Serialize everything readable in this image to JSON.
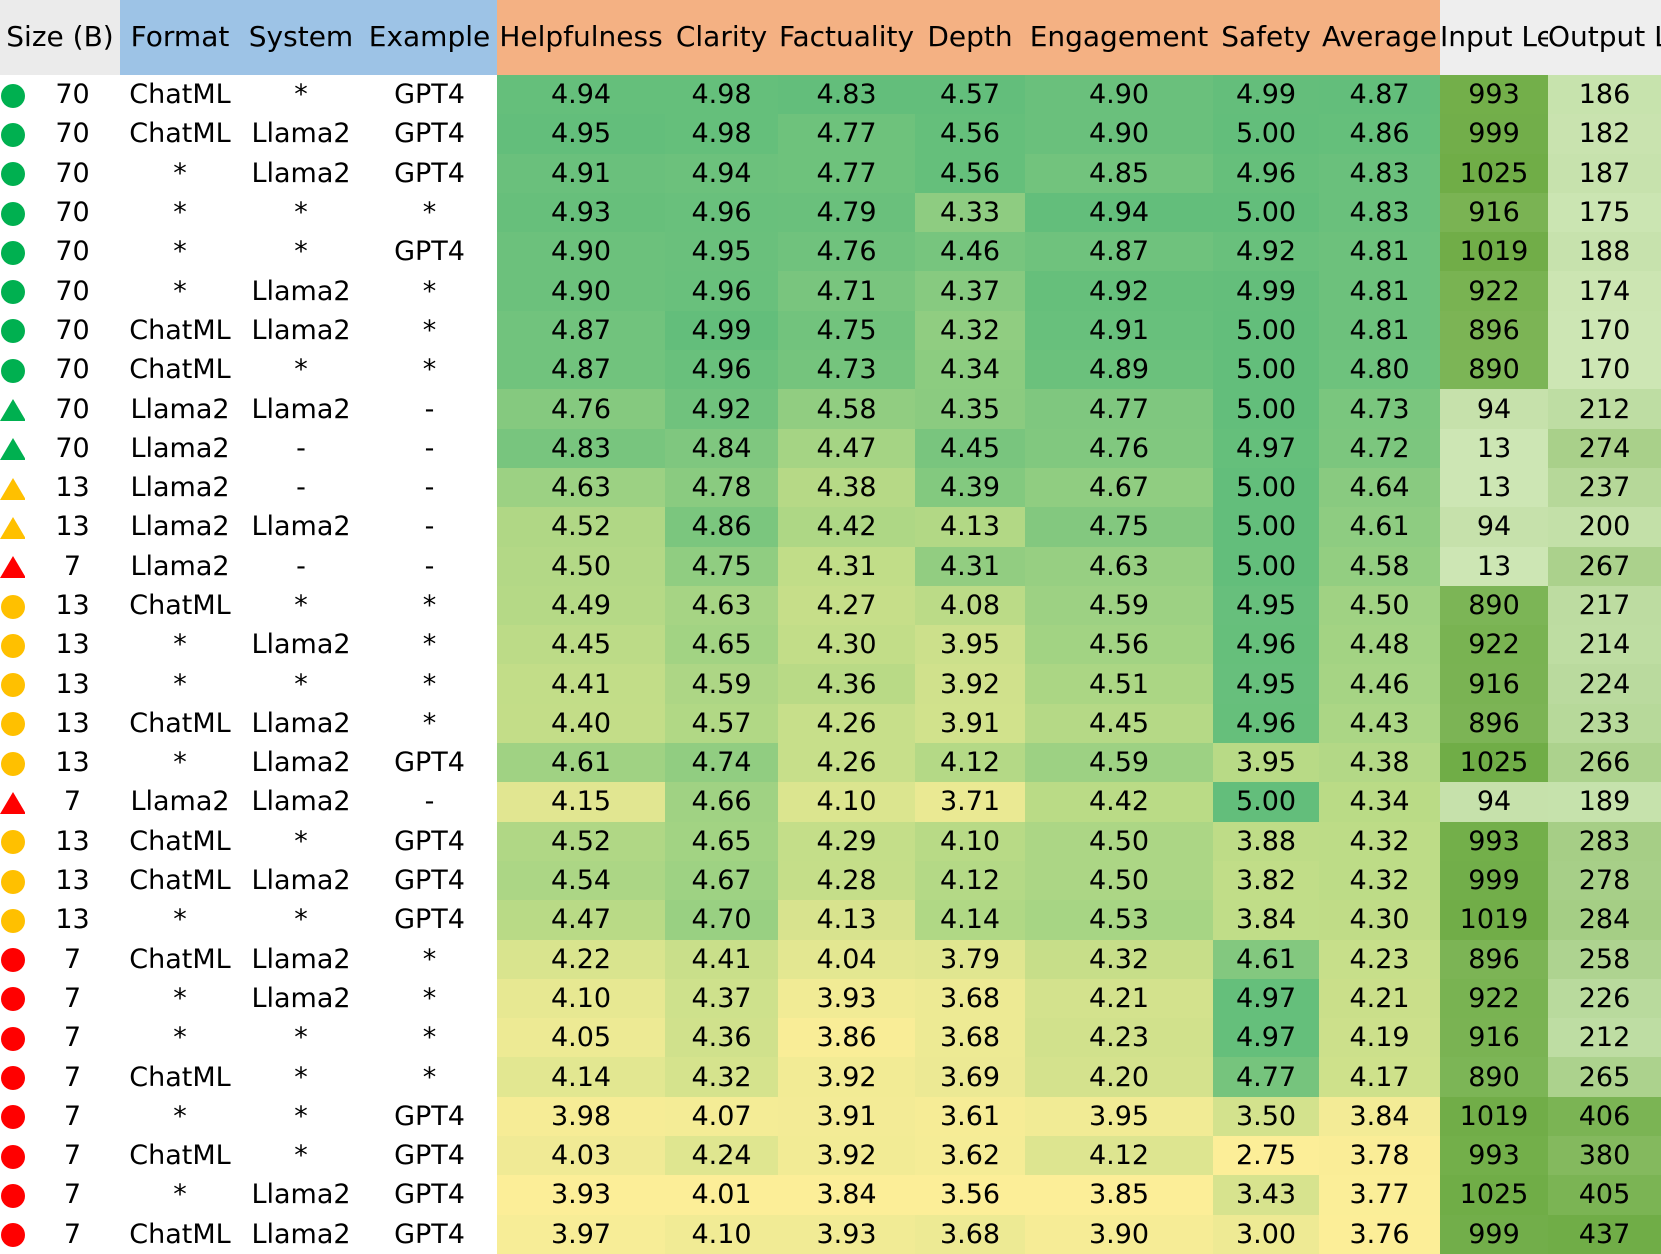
{
  "colors": {
    "green": "#00b050",
    "yellow": "#ffc000",
    "red": "#ff0000"
  },
  "headers": [
    {
      "key": "size",
      "label": "Size (B)"
    },
    {
      "key": "format",
      "label": "Format"
    },
    {
      "key": "system",
      "label": "System"
    },
    {
      "key": "example",
      "label": "Example"
    },
    {
      "key": "helpfulness",
      "label": "Helpfulness"
    },
    {
      "key": "clarity",
      "label": "Clarity"
    },
    {
      "key": "factuality",
      "label": "Factuality"
    },
    {
      "key": "depth",
      "label": "Depth"
    },
    {
      "key": "engagement",
      "label": "Engagement"
    },
    {
      "key": "safety",
      "label": "Safety"
    },
    {
      "key": "average",
      "label": "Average"
    },
    {
      "key": "input_length",
      "label": "Input Length"
    },
    {
      "key": "output_length",
      "label": "Output Length"
    }
  ],
  "rows": [
    {
      "marker": "circle",
      "color": "green",
      "size": "70",
      "format": "ChatML",
      "system": "*",
      "example": "GPT4",
      "helpfulness": "4.94",
      "clarity": "4.98",
      "factuality": "4.83",
      "depth": "4.57",
      "engagement": "4.90",
      "safety": "4.99",
      "average": "4.87",
      "input_length": "993",
      "output_length": "186"
    },
    {
      "marker": "circle",
      "color": "green",
      "size": "70",
      "format": "ChatML",
      "system": "Llama2",
      "example": "GPT4",
      "helpfulness": "4.95",
      "clarity": "4.98",
      "factuality": "4.77",
      "depth": "4.56",
      "engagement": "4.90",
      "safety": "5.00",
      "average": "4.86",
      "input_length": "999",
      "output_length": "182"
    },
    {
      "marker": "circle",
      "color": "green",
      "size": "70",
      "format": "*",
      "system": "Llama2",
      "example": "GPT4",
      "helpfulness": "4.91",
      "clarity": "4.94",
      "factuality": "4.77",
      "depth": "4.56",
      "engagement": "4.85",
      "safety": "4.96",
      "average": "4.83",
      "input_length": "1025",
      "output_length": "187"
    },
    {
      "marker": "circle",
      "color": "green",
      "size": "70",
      "format": "*",
      "system": "*",
      "example": "*",
      "helpfulness": "4.93",
      "clarity": "4.96",
      "factuality": "4.79",
      "depth": "4.33",
      "engagement": "4.94",
      "safety": "5.00",
      "average": "4.83",
      "input_length": "916",
      "output_length": "175"
    },
    {
      "marker": "circle",
      "color": "green",
      "size": "70",
      "format": "*",
      "system": "*",
      "example": "GPT4",
      "helpfulness": "4.90",
      "clarity": "4.95",
      "factuality": "4.76",
      "depth": "4.46",
      "engagement": "4.87",
      "safety": "4.92",
      "average": "4.81",
      "input_length": "1019",
      "output_length": "188"
    },
    {
      "marker": "circle",
      "color": "green",
      "size": "70",
      "format": "*",
      "system": "Llama2",
      "example": "*",
      "helpfulness": "4.90",
      "clarity": "4.96",
      "factuality": "4.71",
      "depth": "4.37",
      "engagement": "4.92",
      "safety": "4.99",
      "average": "4.81",
      "input_length": "922",
      "output_length": "174"
    },
    {
      "marker": "circle",
      "color": "green",
      "size": "70",
      "format": "ChatML",
      "system": "Llama2",
      "example": "*",
      "helpfulness": "4.87",
      "clarity": "4.99",
      "factuality": "4.75",
      "depth": "4.32",
      "engagement": "4.91",
      "safety": "5.00",
      "average": "4.81",
      "input_length": "896",
      "output_length": "170"
    },
    {
      "marker": "circle",
      "color": "green",
      "size": "70",
      "format": "ChatML",
      "system": "*",
      "example": "*",
      "helpfulness": "4.87",
      "clarity": "4.96",
      "factuality": "4.73",
      "depth": "4.34",
      "engagement": "4.89",
      "safety": "5.00",
      "average": "4.80",
      "input_length": "890",
      "output_length": "170"
    },
    {
      "marker": "triangle",
      "color": "green",
      "size": "70",
      "format": "Llama2",
      "system": "Llama2",
      "example": "-",
      "helpfulness": "4.76",
      "clarity": "4.92",
      "factuality": "4.58",
      "depth": "4.35",
      "engagement": "4.77",
      "safety": "5.00",
      "average": "4.73",
      "input_length": "94",
      "output_length": "212"
    },
    {
      "marker": "triangle",
      "color": "green",
      "size": "70",
      "format": "Llama2",
      "system": "-",
      "example": "-",
      "helpfulness": "4.83",
      "clarity": "4.84",
      "factuality": "4.47",
      "depth": "4.45",
      "engagement": "4.76",
      "safety": "4.97",
      "average": "4.72",
      "input_length": "13",
      "output_length": "274"
    },
    {
      "marker": "triangle",
      "color": "yellow",
      "size": "13",
      "format": "Llama2",
      "system": "-",
      "example": "-",
      "helpfulness": "4.63",
      "clarity": "4.78",
      "factuality": "4.38",
      "depth": "4.39",
      "engagement": "4.67",
      "safety": "5.00",
      "average": "4.64",
      "input_length": "13",
      "output_length": "237"
    },
    {
      "marker": "triangle",
      "color": "yellow",
      "size": "13",
      "format": "Llama2",
      "system": "Llama2",
      "example": "-",
      "helpfulness": "4.52",
      "clarity": "4.86",
      "factuality": "4.42",
      "depth": "4.13",
      "engagement": "4.75",
      "safety": "5.00",
      "average": "4.61",
      "input_length": "94",
      "output_length": "200"
    },
    {
      "marker": "triangle",
      "color": "red",
      "size": "7",
      "format": "Llama2",
      "system": "-",
      "example": "-",
      "helpfulness": "4.50",
      "clarity": "4.75",
      "factuality": "4.31",
      "depth": "4.31",
      "engagement": "4.63",
      "safety": "5.00",
      "average": "4.58",
      "input_length": "13",
      "output_length": "267"
    },
    {
      "marker": "circle",
      "color": "yellow",
      "size": "13",
      "format": "ChatML",
      "system": "*",
      "example": "*",
      "helpfulness": "4.49",
      "clarity": "4.63",
      "factuality": "4.27",
      "depth": "4.08",
      "engagement": "4.59",
      "safety": "4.95",
      "average": "4.50",
      "input_length": "890",
      "output_length": "217"
    },
    {
      "marker": "circle",
      "color": "yellow",
      "size": "13",
      "format": "*",
      "system": "Llama2",
      "example": "*",
      "helpfulness": "4.45",
      "clarity": "4.65",
      "factuality": "4.30",
      "depth": "3.95",
      "engagement": "4.56",
      "safety": "4.96",
      "average": "4.48",
      "input_length": "922",
      "output_length": "214"
    },
    {
      "marker": "circle",
      "color": "yellow",
      "size": "13",
      "format": "*",
      "system": "*",
      "example": "*",
      "helpfulness": "4.41",
      "clarity": "4.59",
      "factuality": "4.36",
      "depth": "3.92",
      "engagement": "4.51",
      "safety": "4.95",
      "average": "4.46",
      "input_length": "916",
      "output_length": "224"
    },
    {
      "marker": "circle",
      "color": "yellow",
      "size": "13",
      "format": "ChatML",
      "system": "Llama2",
      "example": "*",
      "helpfulness": "4.40",
      "clarity": "4.57",
      "factuality": "4.26",
      "depth": "3.91",
      "engagement": "4.45",
      "safety": "4.96",
      "average": "4.43",
      "input_length": "896",
      "output_length": "233"
    },
    {
      "marker": "circle",
      "color": "yellow",
      "size": "13",
      "format": "*",
      "system": "Llama2",
      "example": "GPT4",
      "helpfulness": "4.61",
      "clarity": "4.74",
      "factuality": "4.26",
      "depth": "4.12",
      "engagement": "4.59",
      "safety": "3.95",
      "average": "4.38",
      "input_length": "1025",
      "output_length": "266"
    },
    {
      "marker": "triangle",
      "color": "red",
      "size": "7",
      "format": "Llama2",
      "system": "Llama2",
      "example": "-",
      "helpfulness": "4.15",
      "clarity": "4.66",
      "factuality": "4.10",
      "depth": "3.71",
      "engagement": "4.42",
      "safety": "5.00",
      "average": "4.34",
      "input_length": "94",
      "output_length": "189"
    },
    {
      "marker": "circle",
      "color": "yellow",
      "size": "13",
      "format": "ChatML",
      "system": "*",
      "example": "GPT4",
      "helpfulness": "4.52",
      "clarity": "4.65",
      "factuality": "4.29",
      "depth": "4.10",
      "engagement": "4.50",
      "safety": "3.88",
      "average": "4.32",
      "input_length": "993",
      "output_length": "283"
    },
    {
      "marker": "circle",
      "color": "yellow",
      "size": "13",
      "format": "ChatML",
      "system": "Llama2",
      "example": "GPT4",
      "helpfulness": "4.54",
      "clarity": "4.67",
      "factuality": "4.28",
      "depth": "4.12",
      "engagement": "4.50",
      "safety": "3.82",
      "average": "4.32",
      "input_length": "999",
      "output_length": "278"
    },
    {
      "marker": "circle",
      "color": "yellow",
      "size": "13",
      "format": "*",
      "system": "*",
      "example": "GPT4",
      "helpfulness": "4.47",
      "clarity": "4.70",
      "factuality": "4.13",
      "depth": "4.14",
      "engagement": "4.53",
      "safety": "3.84",
      "average": "4.30",
      "input_length": "1019",
      "output_length": "284"
    },
    {
      "marker": "circle",
      "color": "red",
      "size": "7",
      "format": "ChatML",
      "system": "Llama2",
      "example": "*",
      "helpfulness": "4.22",
      "clarity": "4.41",
      "factuality": "4.04",
      "depth": "3.79",
      "engagement": "4.32",
      "safety": "4.61",
      "average": "4.23",
      "input_length": "896",
      "output_length": "258"
    },
    {
      "marker": "circle",
      "color": "red",
      "size": "7",
      "format": "*",
      "system": "Llama2",
      "example": "*",
      "helpfulness": "4.10",
      "clarity": "4.37",
      "factuality": "3.93",
      "depth": "3.68",
      "engagement": "4.21",
      "safety": "4.97",
      "average": "4.21",
      "input_length": "922",
      "output_length": "226"
    },
    {
      "marker": "circle",
      "color": "red",
      "size": "7",
      "format": "*",
      "system": "*",
      "example": "*",
      "helpfulness": "4.05",
      "clarity": "4.36",
      "factuality": "3.86",
      "depth": "3.68",
      "engagement": "4.23",
      "safety": "4.97",
      "average": "4.19",
      "input_length": "916",
      "output_length": "212"
    },
    {
      "marker": "circle",
      "color": "red",
      "size": "7",
      "format": "ChatML",
      "system": "*",
      "example": "*",
      "helpfulness": "4.14",
      "clarity": "4.32",
      "factuality": "3.92",
      "depth": "3.69",
      "engagement": "4.20",
      "safety": "4.77",
      "average": "4.17",
      "input_length": "890",
      "output_length": "265"
    },
    {
      "marker": "circle",
      "color": "red",
      "size": "7",
      "format": "*",
      "system": "*",
      "example": "GPT4",
      "helpfulness": "3.98",
      "clarity": "4.07",
      "factuality": "3.91",
      "depth": "3.61",
      "engagement": "3.95",
      "safety": "3.50",
      "average": "3.84",
      "input_length": "1019",
      "output_length": "406"
    },
    {
      "marker": "circle",
      "color": "red",
      "size": "7",
      "format": "ChatML",
      "system": "*",
      "example": "GPT4",
      "helpfulness": "4.03",
      "clarity": "4.24",
      "factuality": "3.92",
      "depth": "3.62",
      "engagement": "4.12",
      "safety": "2.75",
      "average": "3.78",
      "input_length": "993",
      "output_length": "380"
    },
    {
      "marker": "circle",
      "color": "red",
      "size": "7",
      "format": "*",
      "system": "Llama2",
      "example": "GPT4",
      "helpfulness": "3.93",
      "clarity": "4.01",
      "factuality": "3.84",
      "depth": "3.56",
      "engagement": "3.85",
      "safety": "3.43",
      "average": "3.77",
      "input_length": "1025",
      "output_length": "405"
    },
    {
      "marker": "circle",
      "color": "red",
      "size": "7",
      "format": "ChatML",
      "system": "Llama2",
      "example": "GPT4",
      "helpfulness": "3.97",
      "clarity": "4.10",
      "factuality": "3.93",
      "depth": "3.68",
      "engagement": "3.90",
      "safety": "3.00",
      "average": "3.76",
      "input_length": "999",
      "output_length": "437"
    }
  ]
}
